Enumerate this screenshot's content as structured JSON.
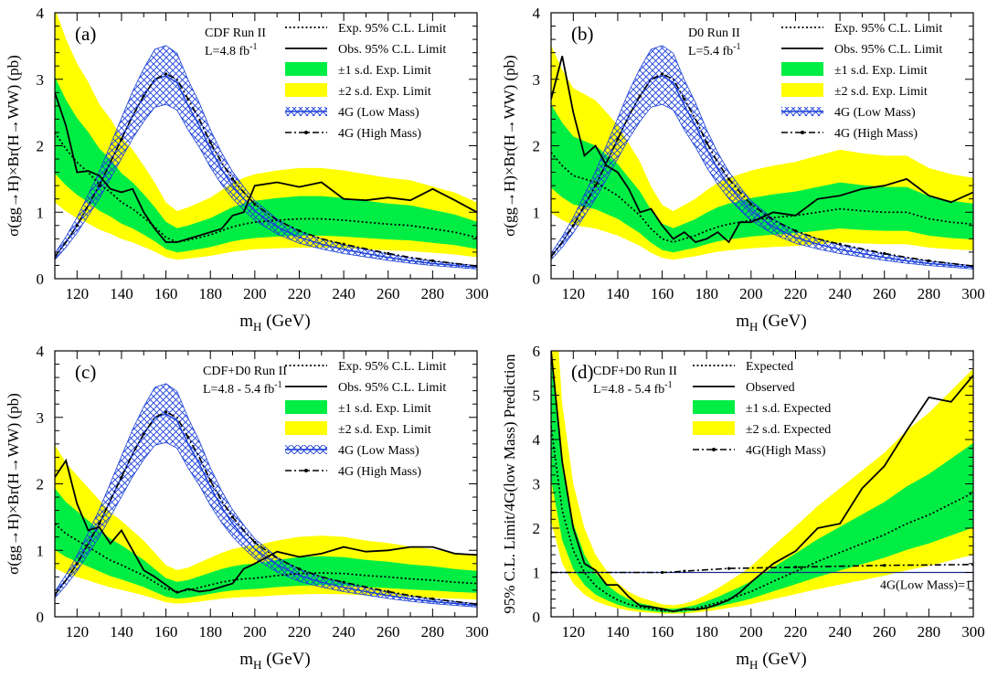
{
  "chart_data": [
    {
      "type": "line",
      "panel_label": "(a)",
      "experiment": "CDF Run II",
      "luminosity": "L=4.8 fb",
      "lumi_exp": "-1",
      "ylabel": "σ(gg→H)×Br(H→WW) (pb)",
      "xlabel": "m",
      "xlabel_sub": "H",
      "xlabel_unit": " (GeV)",
      "xlim": [
        110,
        300
      ],
      "ylim": [
        0,
        4
      ],
      "xticks": [
        120,
        140,
        160,
        180,
        200,
        220,
        240,
        260,
        280,
        300
      ],
      "yticks": [
        0,
        1,
        2,
        3,
        4
      ],
      "legend_position": "top-right",
      "legend": [
        "Exp. 95% C.L. Limit",
        "Obs. 95% C.L. Limit",
        "±1 s.d. Exp. Limit",
        "±2 s.d. Exp. Limit",
        "4G (Low Mass)",
        "4G (High Mass)"
      ],
      "x": [
        110,
        115,
        120,
        125,
        130,
        135,
        140,
        145,
        150,
        155,
        160,
        165,
        170,
        175,
        180,
        185,
        190,
        195,
        200,
        210,
        220,
        230,
        240,
        250,
        260,
        270,
        280,
        290,
        300
      ],
      "series": [
        {
          "name": "Exp. 95% C.L. Limit",
          "style": "dotted",
          "values": [
            2.2,
            1.95,
            1.75,
            1.6,
            1.42,
            1.3,
            1.15,
            1.05,
            0.92,
            0.78,
            0.62,
            0.55,
            0.58,
            0.62,
            0.66,
            0.72,
            0.78,
            0.82,
            0.85,
            0.88,
            0.9,
            0.9,
            0.88,
            0.85,
            0.82,
            0.8,
            0.75,
            0.7,
            0.62
          ]
        },
        {
          "name": "Obs. 95% C.L. Limit",
          "style": "solid",
          "values": [
            2.8,
            2.3,
            1.6,
            1.62,
            1.55,
            1.35,
            1.3,
            1.35,
            1.0,
            0.75,
            0.55,
            0.55,
            0.6,
            0.65,
            0.7,
            0.75,
            0.95,
            1.0,
            1.4,
            1.45,
            1.38,
            1.45,
            1.2,
            1.18,
            1.22,
            1.18,
            1.35,
            1.18,
            1.0
          ]
        },
        {
          "name": "±1 s.d. Exp. Limit",
          "type": "band",
          "lower_factor": 0.72,
          "upper_factor": 1.38
        },
        {
          "name": "±2 s.d. Exp. Limit",
          "type": "band",
          "lower_factor": 0.52,
          "upper_factor": 1.85
        },
        {
          "name": "4G (Low Mass)",
          "style": "hatched",
          "x": [
            110,
            115,
            120,
            125,
            130,
            135,
            140,
            145,
            150,
            155,
            160,
            165,
            170,
            175,
            180,
            185,
            190,
            195,
            200,
            210,
            220,
            230,
            240,
            250,
            260,
            270,
            280,
            290,
            300
          ],
          "values": [
            0.33,
            0.55,
            0.8,
            1.1,
            1.4,
            1.75,
            2.1,
            2.45,
            2.75,
            3.0,
            3.05,
            2.95,
            2.6,
            2.3,
            1.95,
            1.65,
            1.4,
            1.2,
            1.02,
            0.78,
            0.62,
            0.52,
            0.44,
            0.38,
            0.32,
            0.27,
            0.23,
            0.2,
            0.17
          ]
        },
        {
          "name": "4G (High Mass)",
          "style": "dashdot",
          "x": [
            110,
            115,
            120,
            125,
            130,
            135,
            140,
            145,
            150,
            155,
            160,
            165,
            170,
            175,
            180,
            185,
            190,
            195,
            200,
            210,
            220,
            230,
            240,
            250,
            260,
            270,
            280,
            290,
            300
          ],
          "values": [
            0.33,
            0.55,
            0.8,
            1.1,
            1.4,
            1.75,
            2.1,
            2.45,
            2.75,
            3.0,
            3.08,
            3.0,
            2.7,
            2.4,
            2.05,
            1.75,
            1.5,
            1.3,
            1.12,
            0.88,
            0.72,
            0.6,
            0.52,
            0.45,
            0.38,
            0.32,
            0.27,
            0.23,
            0.19
          ]
        }
      ]
    },
    {
      "type": "line",
      "panel_label": "(b)",
      "experiment": "D0 Run II",
      "luminosity": "L=5.4 fb",
      "lumi_exp": "-1",
      "ylabel": "σ(gg→H)×Br(H→WW) (pb)",
      "xlabel": "m",
      "xlabel_sub": "H",
      "xlabel_unit": " (GeV)",
      "xlim": [
        110,
        300
      ],
      "ylim": [
        0,
        4
      ],
      "xticks": [
        120,
        140,
        160,
        180,
        200,
        220,
        240,
        260,
        280,
        300
      ],
      "yticks": [
        0,
        1,
        2,
        3,
        4
      ],
      "legend_position": "top-right",
      "legend": [
        "Exp. 95% C.L. Limit",
        "Obs. 95% C.L. Limit",
        "±1 s.d. Exp. Limit",
        "±2 s.d. Exp. Limit",
        "4G (Low Mass)",
        "4G (High Mass)"
      ],
      "x": [
        110,
        115,
        120,
        125,
        130,
        135,
        140,
        145,
        150,
        155,
        160,
        165,
        170,
        175,
        180,
        185,
        190,
        195,
        200,
        210,
        220,
        230,
        240,
        250,
        260,
        270,
        280,
        290,
        300
      ],
      "series": [
        {
          "name": "Exp. 95% C.L. Limit",
          "style": "dotted",
          "values": [
            1.9,
            1.7,
            1.55,
            1.5,
            1.45,
            1.35,
            1.25,
            1.1,
            0.95,
            0.75,
            0.6,
            0.55,
            0.6,
            0.65,
            0.72,
            0.78,
            0.82,
            0.85,
            0.88,
            0.92,
            0.95,
            1.0,
            1.05,
            1.02,
            1.0,
            1.0,
            0.9,
            0.85,
            0.82
          ]
        },
        {
          "name": "Obs. 95% C.L. Limit",
          "style": "solid",
          "values": [
            2.7,
            3.35,
            2.5,
            1.85,
            2.0,
            1.7,
            1.6,
            1.35,
            1.0,
            1.05,
            0.8,
            0.6,
            0.7,
            0.55,
            0.6,
            0.7,
            0.55,
            0.85,
            0.85,
            1.0,
            0.95,
            1.2,
            1.25,
            1.35,
            1.4,
            1.5,
            1.25,
            1.15,
            1.3
          ]
        },
        {
          "name": "±1 s.d. Exp. Limit",
          "type": "band",
          "lower_factor": 0.72,
          "upper_factor": 1.38
        },
        {
          "name": "±2 s.d. Exp. Limit",
          "type": "band",
          "lower_factor": 0.52,
          "upper_factor": 1.85
        },
        {
          "name": "4G (Low Mass)",
          "style": "hatched",
          "x": [
            110,
            115,
            120,
            125,
            130,
            135,
            140,
            145,
            150,
            155,
            160,
            165,
            170,
            175,
            180,
            185,
            190,
            195,
            200,
            210,
            220,
            230,
            240,
            250,
            260,
            270,
            280,
            290,
            300
          ],
          "values": [
            0.33,
            0.55,
            0.8,
            1.1,
            1.4,
            1.75,
            2.1,
            2.45,
            2.75,
            3.0,
            3.05,
            2.95,
            2.6,
            2.3,
            1.95,
            1.65,
            1.4,
            1.2,
            1.02,
            0.78,
            0.62,
            0.52,
            0.44,
            0.38,
            0.32,
            0.27,
            0.23,
            0.2,
            0.17
          ]
        },
        {
          "name": "4G (High Mass)",
          "style": "dashdot",
          "x": [
            110,
            115,
            120,
            125,
            130,
            135,
            140,
            145,
            150,
            155,
            160,
            165,
            170,
            175,
            180,
            185,
            190,
            195,
            200,
            210,
            220,
            230,
            240,
            250,
            260,
            270,
            280,
            290,
            300
          ],
          "values": [
            0.33,
            0.55,
            0.8,
            1.1,
            1.4,
            1.75,
            2.1,
            2.45,
            2.75,
            3.0,
            3.08,
            3.0,
            2.7,
            2.4,
            2.05,
            1.75,
            1.5,
            1.3,
            1.12,
            0.88,
            0.72,
            0.6,
            0.52,
            0.45,
            0.38,
            0.32,
            0.27,
            0.23,
            0.19
          ]
        }
      ]
    },
    {
      "type": "line",
      "panel_label": "(c)",
      "experiment": "CDF+D0 Run II",
      "luminosity": "L=4.8 - 5.4 fb",
      "lumi_exp": "-1",
      "ylabel": "σ(gg→H)×Br(H→WW) (pb)",
      "xlabel": "m",
      "xlabel_sub": "H",
      "xlabel_unit": " (GeV)",
      "xlim": [
        110,
        300
      ],
      "ylim": [
        0,
        4
      ],
      "xticks": [
        120,
        140,
        160,
        180,
        200,
        220,
        240,
        260,
        280,
        300
      ],
      "yticks": [
        0,
        1,
        2,
        3,
        4
      ],
      "legend_position": "top-right",
      "legend": [
        "Exp. 95% C.L. Limit",
        "Obs. 95% C.L. Limit",
        "±1 s.d. Exp. Limit",
        "±2 s.d. Exp. Limit",
        "4G (Low Mass)",
        "4G (High Mass)"
      ],
      "x": [
        110,
        115,
        120,
        125,
        130,
        135,
        140,
        145,
        150,
        155,
        160,
        165,
        170,
        175,
        180,
        185,
        190,
        195,
        200,
        210,
        220,
        230,
        240,
        250,
        260,
        270,
        280,
        290,
        300
      ],
      "series": [
        {
          "name": "Exp. 95% C.L. Limit",
          "style": "dotted",
          "values": [
            1.4,
            1.25,
            1.15,
            1.05,
            0.95,
            0.85,
            0.78,
            0.7,
            0.62,
            0.52,
            0.42,
            0.38,
            0.4,
            0.44,
            0.48,
            0.52,
            0.55,
            0.57,
            0.58,
            0.62,
            0.65,
            0.66,
            0.65,
            0.62,
            0.6,
            0.57,
            0.55,
            0.52,
            0.5
          ]
        },
        {
          "name": "Obs. 95% C.L. Limit",
          "style": "solid",
          "values": [
            2.1,
            2.35,
            1.7,
            1.3,
            1.35,
            1.1,
            1.3,
            1.0,
            0.7,
            0.6,
            0.48,
            0.36,
            0.42,
            0.38,
            0.4,
            0.45,
            0.5,
            0.72,
            0.8,
            0.98,
            0.9,
            0.95,
            1.05,
            0.98,
            1.0,
            1.05,
            1.05,
            0.95,
            0.93
          ]
        },
        {
          "name": "±1 s.d. Exp. Limit",
          "type": "band",
          "lower_factor": 0.72,
          "upper_factor": 1.38
        },
        {
          "name": "±2 s.d. Exp. Limit",
          "type": "band",
          "lower_factor": 0.52,
          "upper_factor": 1.85
        },
        {
          "name": "4G (Low Mass)",
          "style": "hatched",
          "x": [
            110,
            115,
            120,
            125,
            130,
            135,
            140,
            145,
            150,
            155,
            160,
            165,
            170,
            175,
            180,
            185,
            190,
            195,
            200,
            210,
            220,
            230,
            240,
            250,
            260,
            270,
            280,
            290,
            300
          ],
          "values": [
            0.33,
            0.55,
            0.8,
            1.1,
            1.4,
            1.75,
            2.1,
            2.45,
            2.75,
            3.0,
            3.05,
            2.95,
            2.6,
            2.3,
            1.95,
            1.65,
            1.4,
            1.2,
            1.02,
            0.78,
            0.62,
            0.52,
            0.44,
            0.38,
            0.32,
            0.27,
            0.23,
            0.2,
            0.17
          ]
        },
        {
          "name": "4G (High Mass)",
          "style": "dashdot",
          "x": [
            110,
            115,
            120,
            125,
            130,
            135,
            140,
            145,
            150,
            155,
            160,
            165,
            170,
            175,
            180,
            185,
            190,
            195,
            200,
            210,
            220,
            230,
            240,
            250,
            260,
            270,
            280,
            290,
            300
          ],
          "values": [
            0.33,
            0.55,
            0.8,
            1.1,
            1.4,
            1.75,
            2.1,
            2.45,
            2.75,
            3.0,
            3.08,
            3.0,
            2.7,
            2.4,
            2.05,
            1.75,
            1.5,
            1.3,
            1.12,
            0.88,
            0.72,
            0.6,
            0.52,
            0.45,
            0.38,
            0.32,
            0.27,
            0.23,
            0.19
          ]
        }
      ]
    },
    {
      "type": "line",
      "panel_label": "(d)",
      "experiment": "CDF+D0 Run II",
      "luminosity": "L=4.8 - 5.4 fb",
      "lumi_exp": "-1",
      "ylabel": "95% C.L. Limit/4G(low Mass) Prediction",
      "xlabel": "m",
      "xlabel_sub": "H",
      "xlabel_unit": " (GeV)",
      "xlim": [
        110,
        300
      ],
      "ylim": [
        0,
        6
      ],
      "xticks": [
        120,
        140,
        160,
        180,
        200,
        220,
        240,
        260,
        280,
        300
      ],
      "yticks": [
        0,
        1,
        2,
        3,
        4,
        5,
        6
      ],
      "legend_position": "top-right",
      "legend": [
        "Expected",
        "Observed",
        "±1 s.d. Expected",
        "±2 s.d. Expected",
        "4G(High Mass)"
      ],
      "reference_label": "4G(Low Mass)=1",
      "reference_value": 1,
      "x": [
        110,
        115,
        120,
        125,
        130,
        135,
        140,
        145,
        150,
        155,
        160,
        165,
        170,
        175,
        180,
        185,
        190,
        195,
        200,
        210,
        220,
        230,
        240,
        250,
        260,
        270,
        280,
        290,
        300
      ],
      "series": [
        {
          "name": "Expected",
          "style": "dotted",
          "values": [
            4.3,
            2.4,
            1.5,
            1.0,
            0.7,
            0.52,
            0.38,
            0.28,
            0.22,
            0.18,
            0.14,
            0.13,
            0.15,
            0.19,
            0.25,
            0.32,
            0.4,
            0.48,
            0.57,
            0.8,
            1.02,
            1.25,
            1.45,
            1.65,
            1.85,
            2.1,
            2.3,
            2.55,
            2.8
          ]
        },
        {
          "name": "Observed",
          "style": "solid",
          "values": [
            6.0,
            3.5,
            2.0,
            1.2,
            1.05,
            0.72,
            0.72,
            0.45,
            0.25,
            0.22,
            0.18,
            0.12,
            0.18,
            0.16,
            0.2,
            0.28,
            0.38,
            0.55,
            0.78,
            1.2,
            1.48,
            2.0,
            2.1,
            2.9,
            3.4,
            4.2,
            4.95,
            4.85,
            5.45
          ]
        },
        {
          "name": "±1 s.d. Expected",
          "type": "band",
          "lower_factor": 0.72,
          "upper_factor": 1.4
        },
        {
          "name": "±2 s.d. Expected",
          "type": "band",
          "lower_factor": 0.5,
          "upper_factor": 2.0
        },
        {
          "name": "4G(High Mass)",
          "style": "dashdot",
          "x": [
            110,
            150,
            160,
            165,
            170,
            180,
            190,
            200,
            220,
            240,
            260,
            280,
            300
          ],
          "values": [
            1.0,
            1.0,
            1.0,
            1.01,
            1.03,
            1.06,
            1.09,
            1.1,
            1.12,
            1.14,
            1.16,
            1.17,
            1.18
          ]
        }
      ]
    }
  ],
  "colors": {
    "band_1sd": "#00ee44",
    "band_2sd": "#ffff00",
    "low_mass": "#1a3fd8",
    "line": "#000000"
  }
}
